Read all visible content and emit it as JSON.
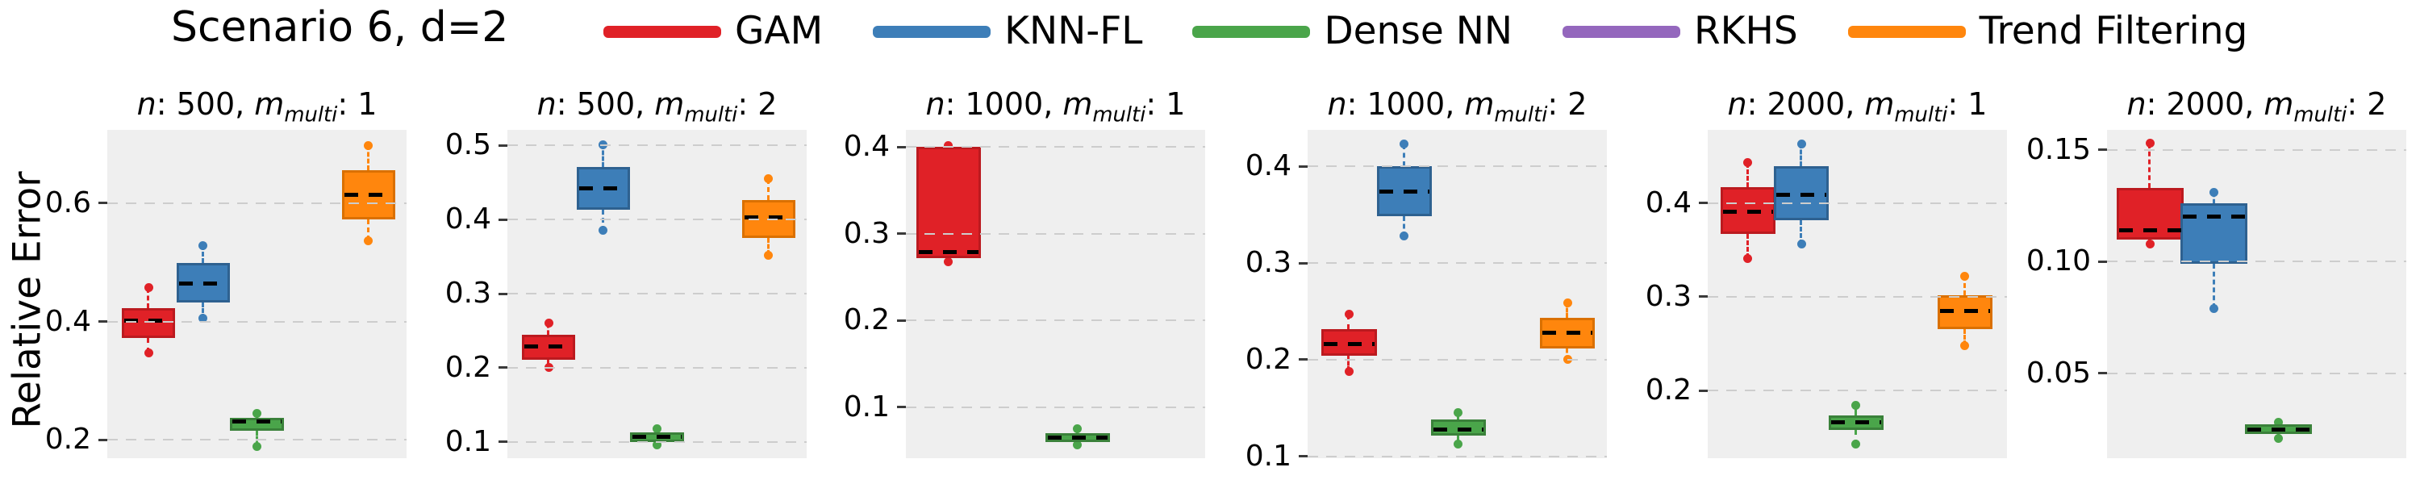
{
  "header": {
    "title": "Scenario 6, d=2",
    "legend": [
      "GAM",
      "KNN-FL",
      "Dense NN",
      "RKHS",
      "Trend Filtering"
    ]
  },
  "ylabel": "Relative Error",
  "methods": {
    "GAM": {
      "color": "#e02127",
      "edge": "#bb1a1f"
    },
    "KNN-FL": {
      "color": "#3d7eb8",
      "edge": "#2e6190"
    },
    "Dense NN": {
      "color": "#4aa54a",
      "edge": "#3a813a"
    },
    "RKHS": {
      "color": "#9467bd",
      "edge": "#7a4fa3"
    },
    "Trend Filtering": {
      "color": "#ff860d",
      "edge": "#da7000"
    }
  },
  "chart_data": [
    {
      "type": "box",
      "title": {
        "n_label": "n",
        "n": "500",
        "m_label": "m",
        "m_sub": "multi",
        "m_val": "1"
      },
      "ylim": [
        0.169,
        0.724
      ],
      "yticks": [
        {
          "value": 0.2,
          "label": "0.2"
        },
        {
          "value": 0.4,
          "label": "0.4"
        },
        {
          "value": 0.6,
          "label": "0.6"
        }
      ],
      "grid": true,
      "boxes": [
        {
          "method": "GAM",
          "pos": 0.138,
          "w": 0.178,
          "q1": 0.372,
          "q3": 0.423,
          "mean": 0.402,
          "whisker_low": 0.347,
          "whisker_high": 0.457
        },
        {
          "method": "KNN-FL",
          "pos": 0.32,
          "w": 0.178,
          "q1": 0.432,
          "q3": 0.499,
          "mean": 0.464,
          "whisker_low": 0.405,
          "whisker_high": 0.529
        },
        {
          "method": "Dense NN",
          "pos": 0.5,
          "w": 0.178,
          "q1": 0.215,
          "q3": 0.237,
          "mean": 0.231,
          "whisker_low": 0.189,
          "whisker_high": 0.245
        },
        {
          "method": "Trend Filtering",
          "pos": 0.873,
          "w": 0.178,
          "q1": 0.573,
          "q3": 0.656,
          "mean": 0.614,
          "whisker_low": 0.537,
          "whisker_high": 0.698
        }
      ]
    },
    {
      "type": "box",
      "title": {
        "n_label": "n",
        "n": "500",
        "m_label": "m",
        "m_sub": "multi",
        "m_val": "2"
      },
      "ylim": [
        0.078,
        0.521
      ],
      "yticks": [
        {
          "value": 0.1,
          "label": "0.1"
        },
        {
          "value": 0.2,
          "label": "0.2"
        },
        {
          "value": 0.3,
          "label": "0.3"
        },
        {
          "value": 0.4,
          "label": "0.4"
        },
        {
          "value": 0.5,
          "label": "0.5"
        }
      ],
      "grid": true,
      "boxes": [
        {
          "method": "GAM",
          "pos": 0.138,
          "w": 0.178,
          "q1": 0.211,
          "q3": 0.244,
          "mean": 0.229,
          "whisker_low": 0.2,
          "whisker_high": 0.26
        },
        {
          "method": "KNN-FL",
          "pos": 0.32,
          "w": 0.178,
          "q1": 0.413,
          "q3": 0.471,
          "mean": 0.442,
          "whisker_low": 0.385,
          "whisker_high": 0.501
        },
        {
          "method": "Dense NN",
          "pos": 0.5,
          "w": 0.178,
          "q1": 0.1,
          "q3": 0.113,
          "mean": 0.107,
          "whisker_low": 0.096,
          "whisker_high": 0.118
        },
        {
          "method": "Trend Filtering",
          "pos": 0.873,
          "w": 0.178,
          "q1": 0.375,
          "q3": 0.426,
          "mean": 0.403,
          "whisker_low": 0.352,
          "whisker_high": 0.455
        }
      ]
    },
    {
      "type": "box",
      "title": {
        "n_label": "n",
        "n": "1000",
        "m_label": "m",
        "m_sub": "multi",
        "m_val": "1"
      },
      "ylim": [
        0.041,
        0.42
      ],
      "yticks": [
        {
          "value": 0.1,
          "label": "0.1"
        },
        {
          "value": 0.2,
          "label": "0.2"
        },
        {
          "value": 0.3,
          "label": "0.3"
        },
        {
          "value": 0.4,
          "label": "0.4"
        }
      ],
      "grid": true,
      "boxes": [
        {
          "method": "GAM",
          "pos": 0.142,
          "w": 0.216,
          "q1": 0.272,
          "q3": 0.4,
          "mean": 0.279,
          "whisker_low": 0.268,
          "whisker_high": 0.402
        },
        {
          "method": "Dense NN",
          "pos": 0.573,
          "w": 0.216,
          "q1": 0.06,
          "q3": 0.07,
          "mean": 0.065,
          "whisker_low": 0.056,
          "whisker_high": 0.075
        }
      ]
    },
    {
      "type": "box",
      "title": {
        "n_label": "n",
        "n": "1000",
        "m_label": "m",
        "m_sub": "multi",
        "m_val": "2"
      },
      "ylim": [
        0.098,
        0.438
      ],
      "yticks": [
        {
          "value": 0.1,
          "label": "0.1"
        },
        {
          "value": 0.2,
          "label": "0.2"
        },
        {
          "value": 0.3,
          "label": "0.3"
        },
        {
          "value": 0.4,
          "label": "0.4"
        }
      ],
      "grid": true,
      "boxes": [
        {
          "method": "GAM",
          "pos": 0.138,
          "w": 0.185,
          "q1": 0.204,
          "q3": 0.232,
          "mean": 0.216,
          "whisker_low": 0.188,
          "whisker_high": 0.247
        },
        {
          "method": "KNN-FL",
          "pos": 0.323,
          "w": 0.185,
          "q1": 0.349,
          "q3": 0.4,
          "mean": 0.374,
          "whisker_low": 0.328,
          "whisker_high": 0.423
        },
        {
          "method": "Dense NN",
          "pos": 0.504,
          "w": 0.185,
          "q1": 0.121,
          "q3": 0.138,
          "mean": 0.128,
          "whisker_low": 0.113,
          "whisker_high": 0.145
        },
        {
          "method": "Trend Filtering",
          "pos": 0.868,
          "w": 0.185,
          "q1": 0.212,
          "q3": 0.243,
          "mean": 0.228,
          "whisker_low": 0.2,
          "whisker_high": 0.259
        }
      ]
    },
    {
      "type": "box",
      "title": {
        "n_label": "n",
        "n": "2000",
        "m_label": "m",
        "m_sub": "multi",
        "m_val": "1"
      },
      "ylim": [
        0.128,
        0.478
      ],
      "yticks": [
        {
          "value": 0.2,
          "label": "0.2"
        },
        {
          "value": 0.3,
          "label": "0.3"
        },
        {
          "value": 0.4,
          "label": "0.4"
        }
      ],
      "grid": true,
      "boxes": [
        {
          "method": "GAM",
          "pos": 0.134,
          "w": 0.183,
          "q1": 0.367,
          "q3": 0.417,
          "mean": 0.391,
          "whisker_low": 0.341,
          "whisker_high": 0.443
        },
        {
          "method": "KNN-FL",
          "pos": 0.313,
          "w": 0.183,
          "q1": 0.382,
          "q3": 0.439,
          "mean": 0.409,
          "whisker_low": 0.356,
          "whisker_high": 0.463
        },
        {
          "method": "Dense NN",
          "pos": 0.495,
          "w": 0.183,
          "q1": 0.158,
          "q3": 0.174,
          "mean": 0.166,
          "whisker_low": 0.143,
          "whisker_high": 0.184
        },
        {
          "method": "Trend Filtering",
          "pos": 0.859,
          "w": 0.183,
          "q1": 0.266,
          "q3": 0.302,
          "mean": 0.285,
          "whisker_low": 0.248,
          "whisker_high": 0.322
        }
      ]
    },
    {
      "type": "box",
      "title": {
        "n_label": "n",
        "n": "2000",
        "m_label": "m",
        "m_sub": "multi",
        "m_val": "2"
      },
      "ylim": [
        0.012,
        0.159
      ],
      "yticks": [
        {
          "value": 0.05,
          "label": "0.05"
        },
        {
          "value": 0.1,
          "label": "0.10"
        },
        {
          "value": 0.15,
          "label": "0.15"
        }
      ],
      "grid": true,
      "boxes": [
        {
          "method": "GAM",
          "pos": 0.143,
          "w": 0.224,
          "q1": 0.11,
          "q3": 0.133,
          "mean": 0.114,
          "whisker_low": 0.108,
          "whisker_high": 0.153
        },
        {
          "method": "KNN-FL",
          "pos": 0.358,
          "w": 0.224,
          "q1": 0.099,
          "q3": 0.126,
          "mean": 0.12,
          "whisker_low": 0.079,
          "whisker_high": 0.131
        },
        {
          "method": "Dense NN",
          "pos": 0.574,
          "w": 0.224,
          "q1": 0.023,
          "q3": 0.027,
          "mean": 0.025,
          "whisker_low": 0.021,
          "whisker_high": 0.028
        }
      ]
    }
  ]
}
